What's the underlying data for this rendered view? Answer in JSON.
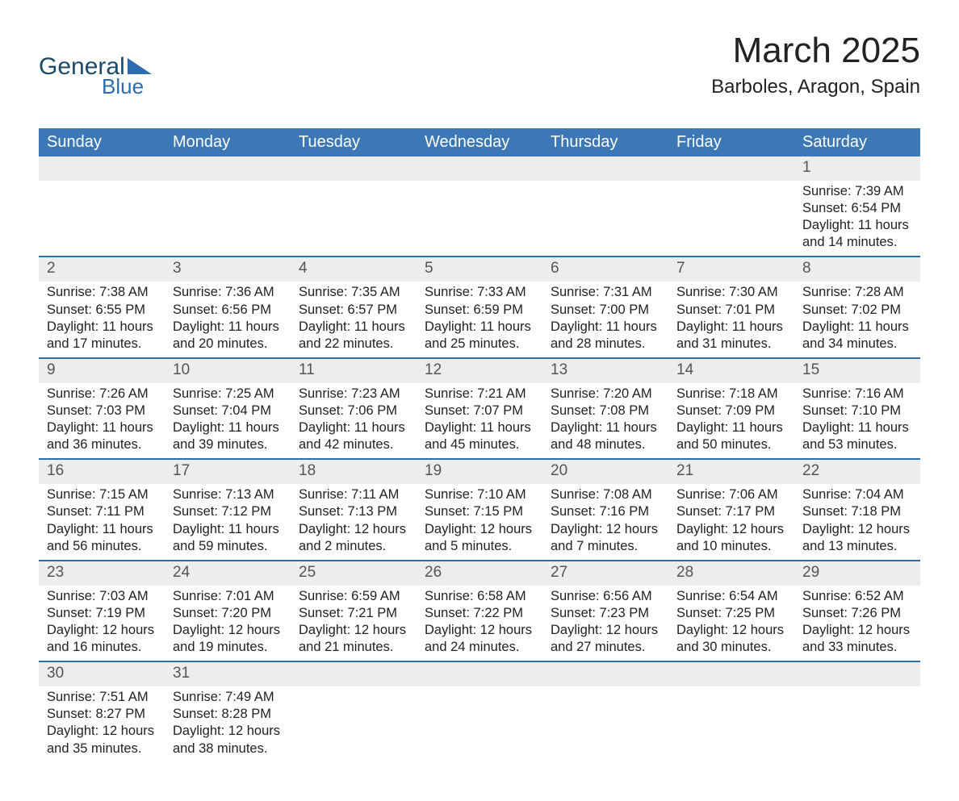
{
  "logo": {
    "top_text": "General",
    "bottom_text": "Blue"
  },
  "header": {
    "month_title": "March 2025",
    "location": "Barboles, Aragon, Spain"
  },
  "colors": {
    "header_blue": "#3b78b5",
    "accent_blue": "#2a6db0",
    "light_gray": "#ededed",
    "text": "#222222",
    "white": "#ffffff"
  },
  "typography": {
    "month_title_fontsize": 44,
    "location_fontsize": 24,
    "weekday_fontsize": 20,
    "daynum_fontsize": 19,
    "detail_fontsize": 16.5,
    "font_family": "Arial"
  },
  "calendar": {
    "type": "table",
    "weekdays": [
      "Sunday",
      "Monday",
      "Tuesday",
      "Wednesday",
      "Thursday",
      "Friday",
      "Saturday"
    ],
    "start_weekday_index": 6,
    "weeks": [
      [
        null,
        null,
        null,
        null,
        null,
        null,
        {
          "day": "1",
          "sunrise": "Sunrise: 7:39 AM",
          "sunset": "Sunset: 6:54 PM",
          "daylight1": "Daylight: 11 hours",
          "daylight2": "and 14 minutes."
        }
      ],
      [
        {
          "day": "2",
          "sunrise": "Sunrise: 7:38 AM",
          "sunset": "Sunset: 6:55 PM",
          "daylight1": "Daylight: 11 hours",
          "daylight2": "and 17 minutes."
        },
        {
          "day": "3",
          "sunrise": "Sunrise: 7:36 AM",
          "sunset": "Sunset: 6:56 PM",
          "daylight1": "Daylight: 11 hours",
          "daylight2": "and 20 minutes."
        },
        {
          "day": "4",
          "sunrise": "Sunrise: 7:35 AM",
          "sunset": "Sunset: 6:57 PM",
          "daylight1": "Daylight: 11 hours",
          "daylight2": "and 22 minutes."
        },
        {
          "day": "5",
          "sunrise": "Sunrise: 7:33 AM",
          "sunset": "Sunset: 6:59 PM",
          "daylight1": "Daylight: 11 hours",
          "daylight2": "and 25 minutes."
        },
        {
          "day": "6",
          "sunrise": "Sunrise: 7:31 AM",
          "sunset": "Sunset: 7:00 PM",
          "daylight1": "Daylight: 11 hours",
          "daylight2": "and 28 minutes."
        },
        {
          "day": "7",
          "sunrise": "Sunrise: 7:30 AM",
          "sunset": "Sunset: 7:01 PM",
          "daylight1": "Daylight: 11 hours",
          "daylight2": "and 31 minutes."
        },
        {
          "day": "8",
          "sunrise": "Sunrise: 7:28 AM",
          "sunset": "Sunset: 7:02 PM",
          "daylight1": "Daylight: 11 hours",
          "daylight2": "and 34 minutes."
        }
      ],
      [
        {
          "day": "9",
          "sunrise": "Sunrise: 7:26 AM",
          "sunset": "Sunset: 7:03 PM",
          "daylight1": "Daylight: 11 hours",
          "daylight2": "and 36 minutes."
        },
        {
          "day": "10",
          "sunrise": "Sunrise: 7:25 AM",
          "sunset": "Sunset: 7:04 PM",
          "daylight1": "Daylight: 11 hours",
          "daylight2": "and 39 minutes."
        },
        {
          "day": "11",
          "sunrise": "Sunrise: 7:23 AM",
          "sunset": "Sunset: 7:06 PM",
          "daylight1": "Daylight: 11 hours",
          "daylight2": "and 42 minutes."
        },
        {
          "day": "12",
          "sunrise": "Sunrise: 7:21 AM",
          "sunset": "Sunset: 7:07 PM",
          "daylight1": "Daylight: 11 hours",
          "daylight2": "and 45 minutes."
        },
        {
          "day": "13",
          "sunrise": "Sunrise: 7:20 AM",
          "sunset": "Sunset: 7:08 PM",
          "daylight1": "Daylight: 11 hours",
          "daylight2": "and 48 minutes."
        },
        {
          "day": "14",
          "sunrise": "Sunrise: 7:18 AM",
          "sunset": "Sunset: 7:09 PM",
          "daylight1": "Daylight: 11 hours",
          "daylight2": "and 50 minutes."
        },
        {
          "day": "15",
          "sunrise": "Sunrise: 7:16 AM",
          "sunset": "Sunset: 7:10 PM",
          "daylight1": "Daylight: 11 hours",
          "daylight2": "and 53 minutes."
        }
      ],
      [
        {
          "day": "16",
          "sunrise": "Sunrise: 7:15 AM",
          "sunset": "Sunset: 7:11 PM",
          "daylight1": "Daylight: 11 hours",
          "daylight2": "and 56 minutes."
        },
        {
          "day": "17",
          "sunrise": "Sunrise: 7:13 AM",
          "sunset": "Sunset: 7:12 PM",
          "daylight1": "Daylight: 11 hours",
          "daylight2": "and 59 minutes."
        },
        {
          "day": "18",
          "sunrise": "Sunrise: 7:11 AM",
          "sunset": "Sunset: 7:13 PM",
          "daylight1": "Daylight: 12 hours",
          "daylight2": "and 2 minutes."
        },
        {
          "day": "19",
          "sunrise": "Sunrise: 7:10 AM",
          "sunset": "Sunset: 7:15 PM",
          "daylight1": "Daylight: 12 hours",
          "daylight2": "and 5 minutes."
        },
        {
          "day": "20",
          "sunrise": "Sunrise: 7:08 AM",
          "sunset": "Sunset: 7:16 PM",
          "daylight1": "Daylight: 12 hours",
          "daylight2": "and 7 minutes."
        },
        {
          "day": "21",
          "sunrise": "Sunrise: 7:06 AM",
          "sunset": "Sunset: 7:17 PM",
          "daylight1": "Daylight: 12 hours",
          "daylight2": "and 10 minutes."
        },
        {
          "day": "22",
          "sunrise": "Sunrise: 7:04 AM",
          "sunset": "Sunset: 7:18 PM",
          "daylight1": "Daylight: 12 hours",
          "daylight2": "and 13 minutes."
        }
      ],
      [
        {
          "day": "23",
          "sunrise": "Sunrise: 7:03 AM",
          "sunset": "Sunset: 7:19 PM",
          "daylight1": "Daylight: 12 hours",
          "daylight2": "and 16 minutes."
        },
        {
          "day": "24",
          "sunrise": "Sunrise: 7:01 AM",
          "sunset": "Sunset: 7:20 PM",
          "daylight1": "Daylight: 12 hours",
          "daylight2": "and 19 minutes."
        },
        {
          "day": "25",
          "sunrise": "Sunrise: 6:59 AM",
          "sunset": "Sunset: 7:21 PM",
          "daylight1": "Daylight: 12 hours",
          "daylight2": "and 21 minutes."
        },
        {
          "day": "26",
          "sunrise": "Sunrise: 6:58 AM",
          "sunset": "Sunset: 7:22 PM",
          "daylight1": "Daylight: 12 hours",
          "daylight2": "and 24 minutes."
        },
        {
          "day": "27",
          "sunrise": "Sunrise: 6:56 AM",
          "sunset": "Sunset: 7:23 PM",
          "daylight1": "Daylight: 12 hours",
          "daylight2": "and 27 minutes."
        },
        {
          "day": "28",
          "sunrise": "Sunrise: 6:54 AM",
          "sunset": "Sunset: 7:25 PM",
          "daylight1": "Daylight: 12 hours",
          "daylight2": "and 30 minutes."
        },
        {
          "day": "29",
          "sunrise": "Sunrise: 6:52 AM",
          "sunset": "Sunset: 7:26 PM",
          "daylight1": "Daylight: 12 hours",
          "daylight2": "and 33 minutes."
        }
      ],
      [
        {
          "day": "30",
          "sunrise": "Sunrise: 7:51 AM",
          "sunset": "Sunset: 8:27 PM",
          "daylight1": "Daylight: 12 hours",
          "daylight2": "and 35 minutes."
        },
        {
          "day": "31",
          "sunrise": "Sunrise: 7:49 AM",
          "sunset": "Sunset: 8:28 PM",
          "daylight1": "Daylight: 12 hours",
          "daylight2": "and 38 minutes."
        },
        null,
        null,
        null,
        null,
        null
      ]
    ]
  }
}
